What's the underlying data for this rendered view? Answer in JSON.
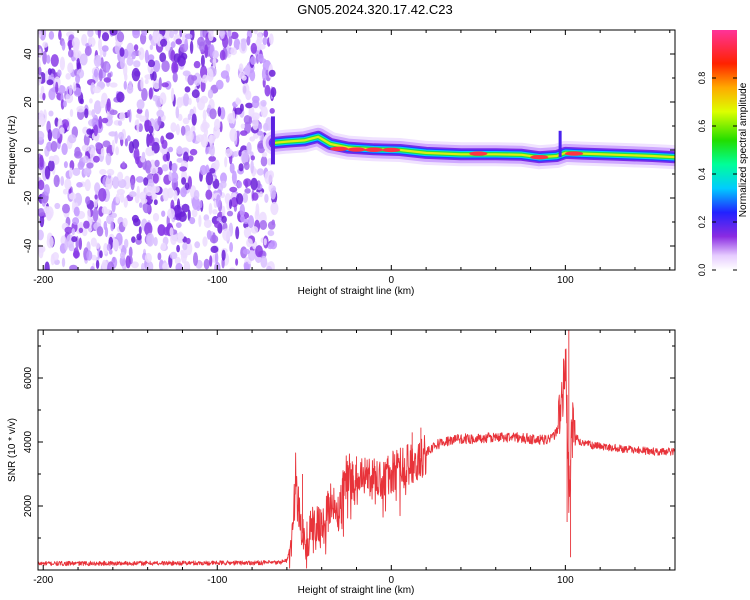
{
  "title": "GN05.2024.320.17.42.C23",
  "chart_data": [
    {
      "type": "heatmap",
      "name": "spectrogram",
      "xlabel": "Height of straight line (km)",
      "ylabel": "Frequency (Hz)",
      "xlim": [
        -203,
        163
      ],
      "ylim": [
        -50,
        50
      ],
      "xticks": [
        -200,
        -100,
        0,
        100
      ],
      "yticks": [
        -40,
        -20,
        0,
        20,
        40
      ],
      "xticklabels": [
        "-200",
        "-100",
        "0",
        "100"
      ],
      "yticklabels": [
        "-40",
        "-20",
        "0",
        "20",
        "40"
      ],
      "noise_region_x": [
        -203,
        -67
      ],
      "ridge": [
        {
          "x": -67,
          "y": 3.0
        },
        {
          "x": -60,
          "y": 3.5
        },
        {
          "x": -50,
          "y": 4.0
        },
        {
          "x": -42,
          "y": 5.5
        },
        {
          "x": -35,
          "y": 2.5
        },
        {
          "x": -25,
          "y": 1.0
        },
        {
          "x": -10,
          "y": 0.3
        },
        {
          "x": 5,
          "y": 0.0
        },
        {
          "x": 20,
          "y": -1.2
        },
        {
          "x": 40,
          "y": -1.8
        },
        {
          "x": 60,
          "y": -1.8
        },
        {
          "x": 75,
          "y": -2.0
        },
        {
          "x": 85,
          "y": -3.0
        },
        {
          "x": 95,
          "y": -2.5
        },
        {
          "x": 100,
          "y": -1.2
        },
        {
          "x": 110,
          "y": -1.5
        },
        {
          "x": 130,
          "y": -2.0
        },
        {
          "x": 150,
          "y": -2.5
        },
        {
          "x": 163,
          "y": -3.0
        }
      ],
      "hot_spots": [
        {
          "x": -30,
          "y": 0.5
        },
        {
          "x": -20,
          "y": 0.2
        },
        {
          "x": -10,
          "y": 0.1
        },
        {
          "x": 0,
          "y": 0.0
        },
        {
          "x": 50,
          "y": -1.5
        },
        {
          "x": 85,
          "y": -3.0
        },
        {
          "x": 105,
          "y": -1.5
        }
      ],
      "colorbar": {
        "label": "Normalized spectral amplitude",
        "range": [
          0.0,
          1.0
        ],
        "ticks": [
          0.0,
          0.2,
          0.4,
          0.6,
          0.8
        ],
        "ticklabels": [
          "0.0",
          "0.2",
          "0.4",
          "0.6",
          "0.8"
        ],
        "colormap": "rainbow (white-purple-blue-cyan-green-yellow-red-pink)"
      }
    },
    {
      "type": "line",
      "name": "snr",
      "xlabel": "Height of straight line (km)",
      "ylabel": "SNR (10 * v/v)",
      "xlim": [
        -203,
        163
      ],
      "ylim": [
        0,
        7500
      ],
      "xticks": [
        -200,
        -100,
        0,
        100
      ],
      "yticks": [
        2000,
        4000,
        6000
      ],
      "xticklabels": [
        "-200",
        "-100",
        "0",
        "100"
      ],
      "yticklabels": [
        "2000",
        "4000",
        "6000"
      ],
      "color": "#e8333a",
      "series": [
        {
          "name": "SNR",
          "x": [
            -203,
            -150,
            -100,
            -65,
            -60,
            -57,
            -55,
            -52,
            -50,
            -45,
            -40,
            -35,
            -30,
            -25,
            -20,
            -15,
            -10,
            -5,
            0,
            5,
            10,
            15,
            20,
            25,
            30,
            40,
            50,
            60,
            70,
            80,
            90,
            95,
            98,
            100,
            102,
            104,
            108,
            115,
            130,
            150,
            163
          ],
          "y": [
            200,
            210,
            220,
            230,
            300,
            900,
            3000,
            1500,
            800,
            1600,
            1200,
            2100,
            1800,
            3200,
            2600,
            2900,
            3000,
            2800,
            3000,
            3200,
            3300,
            3400,
            3700,
            3900,
            4000,
            4100,
            4100,
            4150,
            4150,
            4100,
            4050,
            4300,
            5000,
            6900,
            2500,
            4400,
            4000,
            3900,
            3800,
            3700,
            3700
          ]
        }
      ],
      "spikes": [
        {
          "x": 102,
          "y": 7500
        },
        {
          "x": 103,
          "y": 400
        },
        {
          "x": 100,
          "y": 5900
        },
        {
          "x": 101,
          "y": 1500
        },
        {
          "x": -51,
          "y": 3000
        },
        {
          "x": -22,
          "y": 3300
        },
        {
          "x": -20,
          "y": 3550
        },
        {
          "x": 12,
          "y": 4300
        },
        {
          "x": 17,
          "y": 4450
        }
      ]
    }
  ]
}
